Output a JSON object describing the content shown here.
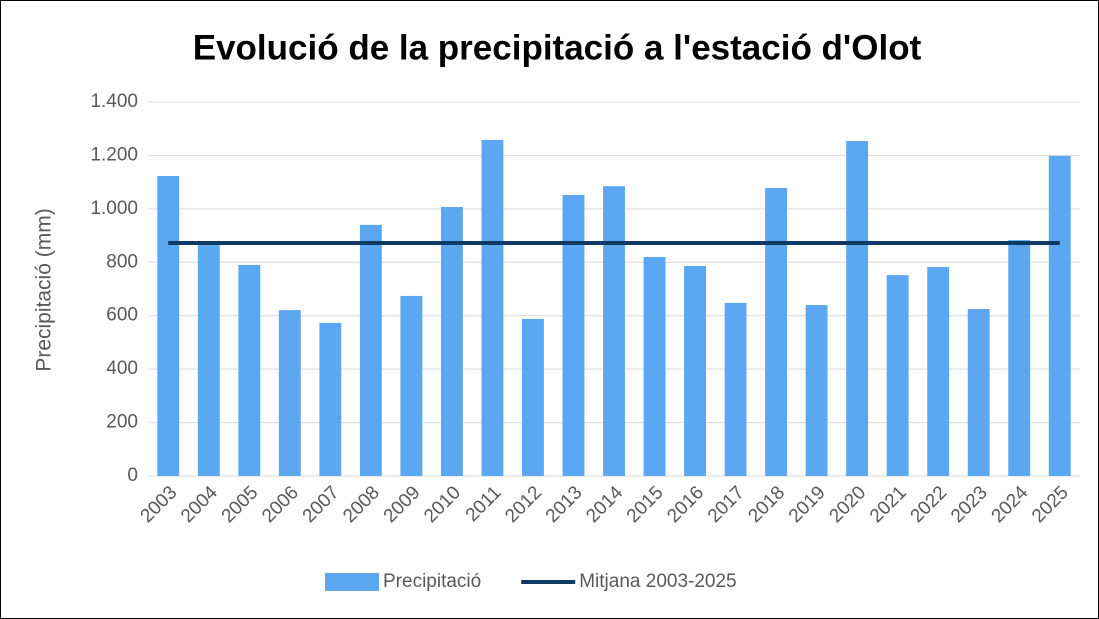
{
  "chart_data": {
    "type": "bar",
    "title": "Evolució de la precipitació a l'estació d'Olot",
    "y_label": "Precipitació (mm)",
    "categories": [
      "2003",
      "2004",
      "2005",
      "2006",
      "2007",
      "2008",
      "2009",
      "2010",
      "2011",
      "2012",
      "2013",
      "2014",
      "2015",
      "2016",
      "2017",
      "2018",
      "2019",
      "2020",
      "2021",
      "2022",
      "2023",
      "2024",
      "2025"
    ],
    "series": [
      {
        "name": "Precipitació",
        "type": "bar",
        "color": "#5ba7f2",
        "values": [
          1123,
          872,
          790,
          621,
          573,
          940,
          674,
          1007,
          1258,
          588,
          1052,
          1085,
          820,
          786,
          648,
          1078,
          640,
          1254,
          752,
          782,
          625,
          883,
          1198
        ]
      },
      {
        "name": "Mitjana 2003-2025",
        "type": "line",
        "color": "#0e3a63",
        "values": [
          872,
          872,
          872,
          872,
          872,
          872,
          872,
          872,
          872,
          872,
          872,
          872,
          872,
          872,
          872,
          872,
          872,
          872,
          872,
          872,
          872,
          872,
          872
        ]
      }
    ],
    "ylim": [
      0,
      1400
    ],
    "yticks": [
      0,
      200,
      400,
      600,
      800,
      {
        "value": 1000,
        "label": "1.000"
      },
      {
        "value": 1200,
        "label": "1.200"
      },
      {
        "value": 1400,
        "label": "1.400"
      }
    ],
    "grid": true,
    "legend": "bottom"
  }
}
